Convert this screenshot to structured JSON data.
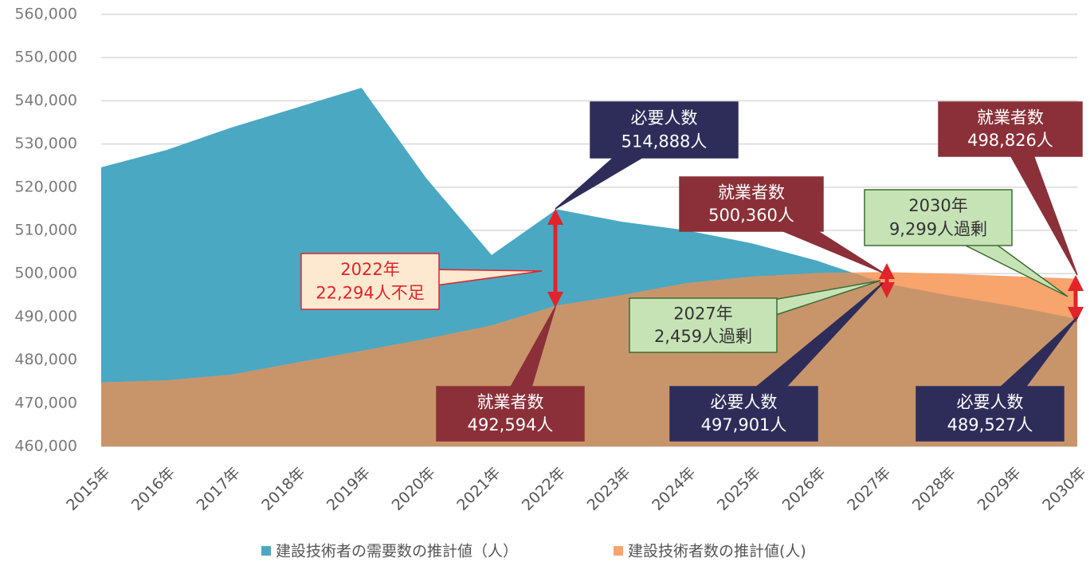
{
  "chart_data": {
    "type": "area",
    "categories": [
      "2015年",
      "2016年",
      "2017年",
      "2018年",
      "2019年",
      "2020年",
      "2021年",
      "2022年",
      "2023年",
      "2024年",
      "2025年",
      "2026年",
      "2027年",
      "2028年",
      "2029年",
      "2030年"
    ],
    "series": [
      {
        "name": "建設技術者の需要数の推計値（人）",
        "color": "#4aa8c2",
        "values": [
          524600,
          528600,
          533800,
          538400,
          543000,
          522000,
          504300,
          514888,
          512000,
          510000,
          507000,
          503000,
          497901,
          495000,
          492500,
          489527
        ]
      },
      {
        "name": "建設技術者数の推計値(人)",
        "color": "#f7a46d",
        "values": [
          474800,
          475300,
          476600,
          479400,
          482100,
          484900,
          488000,
          492594,
          495000,
          497800,
          499300,
          500100,
          500360,
          500000,
          499400,
          498826
        ]
      }
    ],
    "overlap_color": "#c8956b",
    "ylim": [
      460000,
      560000
    ],
    "yticks": [
      {
        "value": 460000,
        "label": "460,000"
      },
      {
        "value": 470000,
        "label": "470,000"
      },
      {
        "value": 480000,
        "label": "480,000"
      },
      {
        "value": 490000,
        "label": "490,000"
      },
      {
        "value": 500000,
        "label": "500,000"
      },
      {
        "value": 510000,
        "label": "510,000"
      },
      {
        "value": 520000,
        "label": "520,000"
      },
      {
        "value": 530000,
        "label": "530,000"
      },
      {
        "value": 540000,
        "label": "540,000"
      },
      {
        "value": 550000,
        "label": "550,000"
      },
      {
        "value": 560000,
        "label": "560,000"
      }
    ],
    "grid": true,
    "legend": "bottom",
    "annotations": [
      {
        "lines": [
          "必要人数",
          "514,888人"
        ]
      },
      {
        "lines": [
          "就業者数",
          "500,360人"
        ]
      },
      {
        "lines": [
          "2030年",
          "9,299人過剰"
        ]
      },
      {
        "lines": [
          "就業者数",
          "498,826人"
        ]
      },
      {
        "lines": [
          "2022年",
          "22,294人不足"
        ]
      },
      {
        "lines": [
          "2027年",
          "2,459人過剰"
        ]
      },
      {
        "lines": [
          "就業者数",
          "492,594人"
        ]
      },
      {
        "lines": [
          "必要人数",
          "497,901人"
        ]
      },
      {
        "lines": [
          "必要人数",
          "489,527人"
        ]
      }
    ]
  }
}
